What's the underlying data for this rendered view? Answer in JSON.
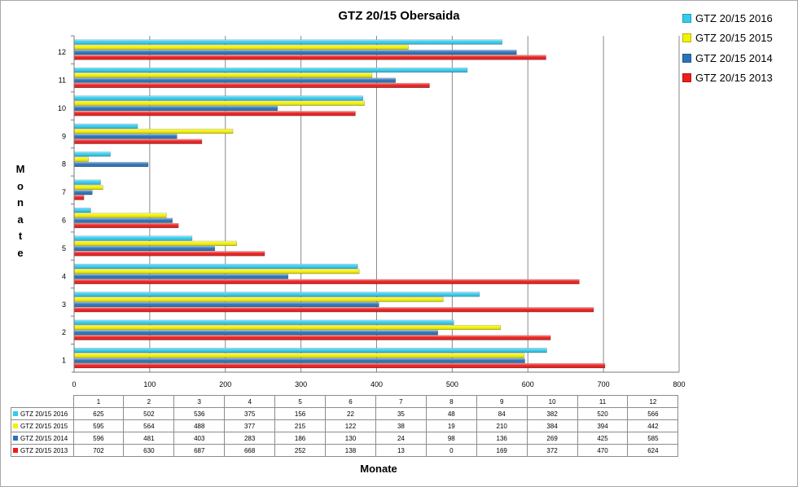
{
  "title": "GTZ 20/15 Obersaida",
  "chart_data": {
    "type": "bar",
    "orientation": "horizontal",
    "title": "GTZ 20/15 Obersaida",
    "xlabel": "Monate",
    "ylabel": "Monate",
    "xlim": [
      0,
      800
    ],
    "xticks": [
      0,
      100,
      200,
      300,
      400,
      500,
      600,
      700,
      800
    ],
    "grid": true,
    "legend_position": "top-right",
    "categories": [
      "1",
      "2",
      "3",
      "4",
      "5",
      "6",
      "7",
      "8",
      "9",
      "10",
      "11",
      "12"
    ],
    "series": [
      {
        "name": "GTZ 20/15  2016",
        "table_name": "GTZ 20/15 2016",
        "color": "#33ccee",
        "values": [
          625,
          502,
          536,
          375,
          156,
          22,
          35,
          48,
          84,
          382,
          520,
          566
        ]
      },
      {
        "name": "GTZ 20/15  2015",
        "table_name": "GTZ 20/15 2015",
        "color": "#f2f200",
        "values": [
          595,
          564,
          488,
          377,
          215,
          122,
          38,
          19,
          210,
          384,
          394,
          442
        ]
      },
      {
        "name": "GTZ 20/15  2014",
        "table_name": "GTZ 20/15 2014",
        "color": "#2a73b8",
        "values": [
          596,
          481,
          403,
          283,
          186,
          130,
          24,
          98,
          136,
          269,
          425,
          585
        ]
      },
      {
        "name": "GTZ 20/15  2013",
        "table_name": "GTZ 20/15 2013",
        "color": "#ee1c1c",
        "values": [
          702,
          630,
          687,
          668,
          252,
          138,
          13,
          0,
          169,
          372,
          470,
          624
        ]
      }
    ]
  }
}
